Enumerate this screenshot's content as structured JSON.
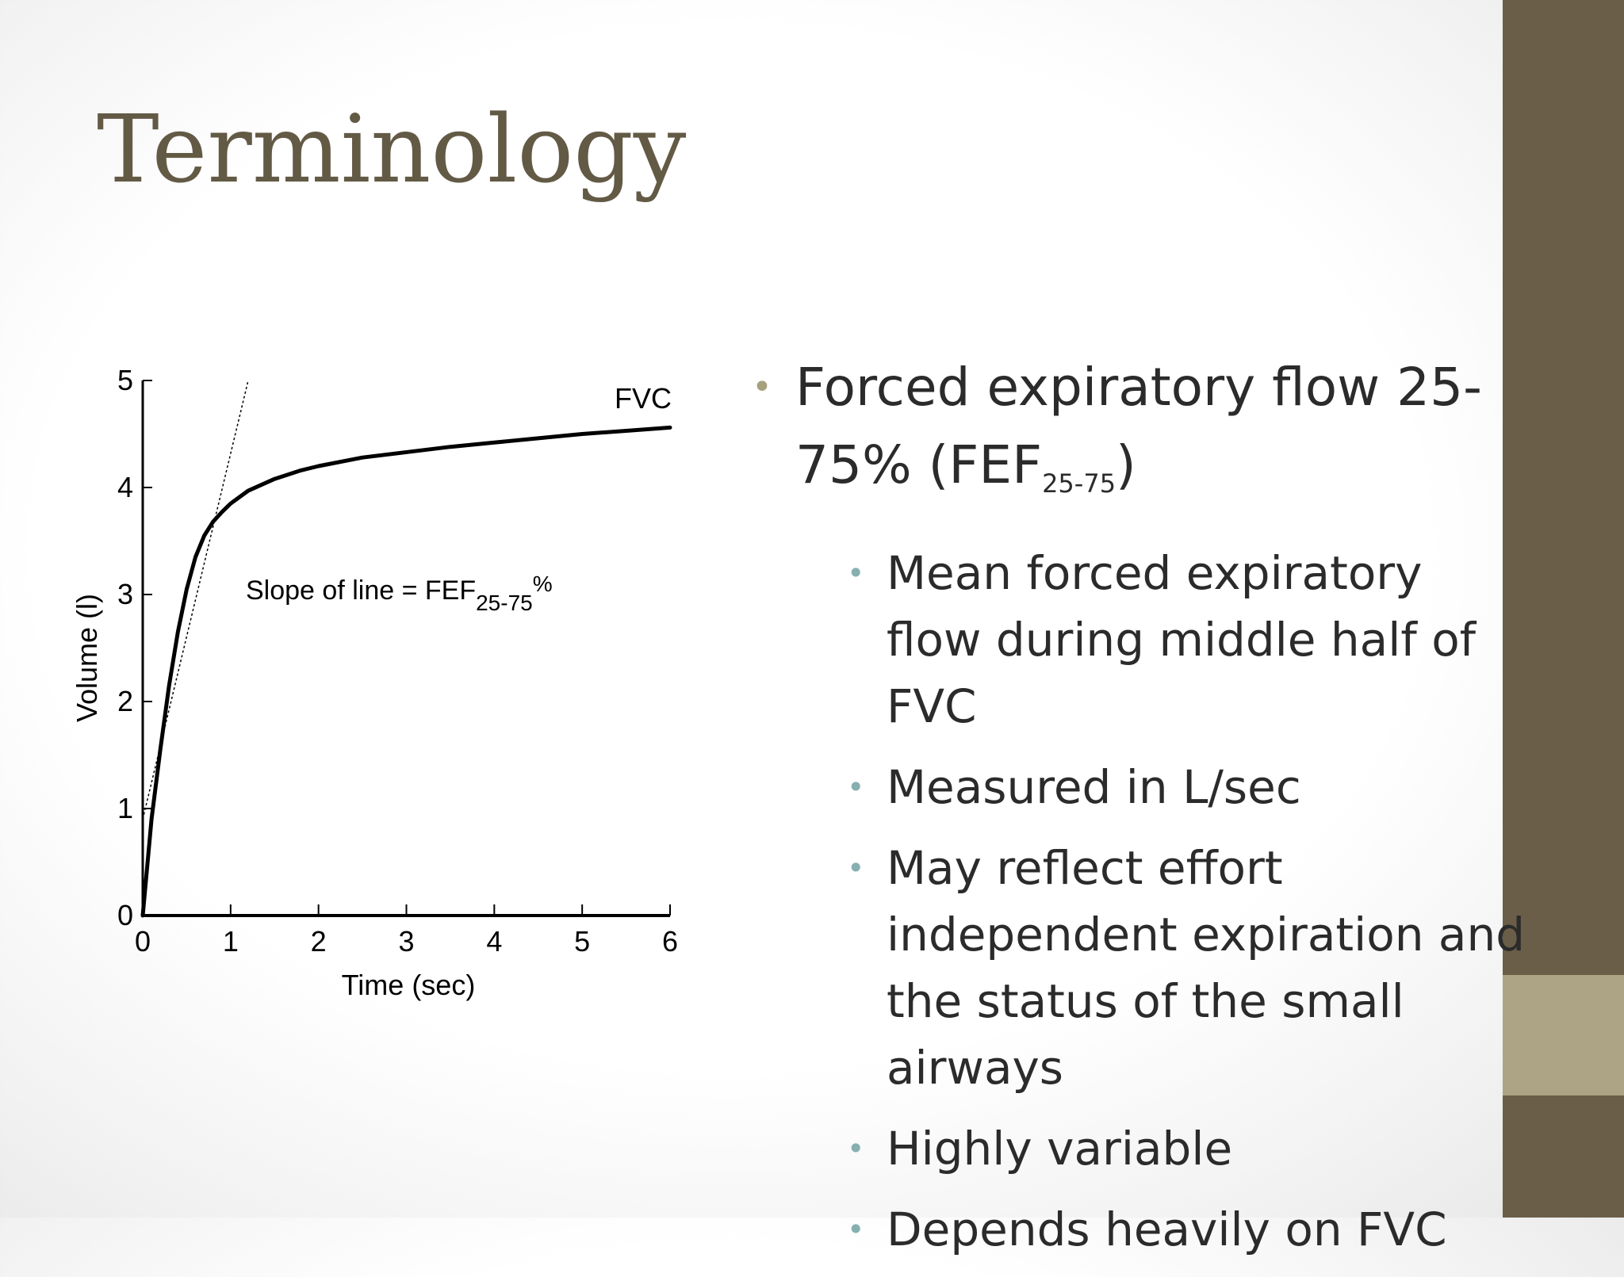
{
  "title": "Terminology",
  "bullets": {
    "main": {
      "text": "Forced expiratory flow 25-75% (FEF",
      "subscript": "25-75",
      "close": ")"
    },
    "sub": [
      "Mean forced expiratory flow during middle half of FVC",
      "Measured in L/sec",
      "May reflect effort independent expiration and the status of the small airways",
      "Highly variable",
      "Depends heavily on FVC"
    ]
  },
  "chart_data": {
    "type": "line",
    "xlabel": "Time (sec)",
    "ylabel": "Volume (l)",
    "xlim": [
      0,
      6
    ],
    "ylim": [
      0,
      5
    ],
    "x_ticks": [
      "0",
      "1",
      "2",
      "3",
      "4",
      "5",
      "6"
    ],
    "y_ticks": [
      "0",
      "1",
      "2",
      "3",
      "4",
      "5"
    ],
    "series": [
      {
        "name": "FVC",
        "x": [
          0,
          0.1,
          0.2,
          0.3,
          0.4,
          0.5,
          0.6,
          0.7,
          0.8,
          0.9,
          1.0,
          1.2,
          1.5,
          1.8,
          2.0,
          2.5,
          3.0,
          3.5,
          4.0,
          4.5,
          5.0,
          5.5,
          6.0
        ],
        "y": [
          0,
          0.9,
          1.55,
          2.15,
          2.65,
          3.05,
          3.35,
          3.55,
          3.68,
          3.77,
          3.85,
          3.97,
          4.08,
          4.16,
          4.2,
          4.28,
          4.33,
          4.38,
          4.42,
          4.46,
          4.5,
          4.53,
          4.56
        ]
      }
    ],
    "tangent_line": {
      "x": [
        0,
        1.2
      ],
      "y": [
        0.9,
        5.0
      ]
    },
    "annotation": {
      "text": "Slope of line = FEF",
      "subscript": "25-75",
      "suffix": "%"
    }
  }
}
